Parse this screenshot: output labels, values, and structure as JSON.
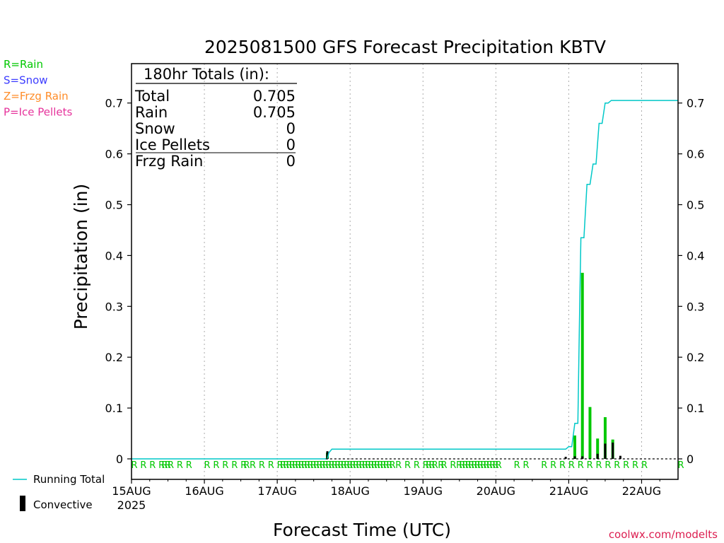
{
  "chart_data": {
    "type": "bar",
    "title": "2025081500 GFS Forecast Precipitation KBTV",
    "xlabel": "Forecast Time (UTC)",
    "ylabel": "Precipitation (in)",
    "ylim": [
      0,
      0.78
    ],
    "yticks": [
      "0",
      "0.1",
      "0.2",
      "0.3",
      "0.4",
      "0.5",
      "0.6",
      "0.7"
    ],
    "y_tick_values": [
      0,
      0.1,
      0.2,
      0.3,
      0.4,
      0.5,
      0.6,
      0.7
    ],
    "x_range_hours": [
      0,
      180
    ],
    "x_ticks": [
      {
        "hour": 0,
        "label": "15AUG",
        "sublabel": "2025"
      },
      {
        "hour": 24,
        "label": "16AUG",
        "sublabel": ""
      },
      {
        "hour": 48,
        "label": "17AUG",
        "sublabel": ""
      },
      {
        "hour": 72,
        "label": "18AUG",
        "sublabel": ""
      },
      {
        "hour": 96,
        "label": "19AUG",
        "sublabel": ""
      },
      {
        "hour": 120,
        "label": "20AUG",
        "sublabel": ""
      },
      {
        "hour": 144,
        "label": "21AUG",
        "sublabel": ""
      },
      {
        "hour": 168,
        "label": "22AUG",
        "sublabel": ""
      }
    ],
    "grid": "vertical-dotted",
    "series": [
      {
        "name": "Running Total",
        "color": "#00c8c8",
        "x": [
          0,
          64.5,
          65,
          66,
          72,
          96,
          120,
          143,
          144,
          145,
          146,
          147,
          147.6,
          148,
          149,
          150,
          151,
          152,
          153,
          154,
          155,
          156,
          157,
          158,
          159,
          160,
          161,
          162,
          163,
          164,
          165,
          166,
          180
        ],
        "y": [
          0,
          0,
          0.012,
          0.019,
          0.019,
          0.019,
          0.019,
          0.019,
          0.024,
          0.024,
          0.07,
          0.07,
          0.3,
          0.435,
          0.435,
          0.54,
          0.54,
          0.58,
          0.58,
          0.66,
          0.66,
          0.7,
          0.7,
          0.705,
          0.705,
          0.705,
          0.705,
          0.705,
          0.705,
          0.705,
          0.705,
          0.705,
          0.705
        ]
      },
      {
        "name": "Rain",
        "color": "#00c800",
        "x": [
          64.5,
          146,
          148.5,
          151,
          153.5,
          156,
          158.5
        ],
        "y": [
          0.012,
          0.046,
          0.366,
          0.102,
          0.04,
          0.082,
          0.038
        ]
      },
      {
        "name": "Convective",
        "color": "#000000",
        "x": [
          64.5,
          143,
          146,
          148.5,
          153.5,
          156,
          158.5,
          161
        ],
        "y": [
          0.015,
          0.004,
          0.005,
          0.005,
          0.01,
          0.03,
          0.032,
          0.006
        ]
      }
    ],
    "ptype_marks": {
      "symbol": "R",
      "color": "#00c800",
      "hours": [
        0,
        3,
        6,
        9,
        10,
        11,
        12,
        15,
        18,
        24,
        27,
        30,
        33,
        36,
        37,
        39,
        42,
        45,
        48,
        49,
        50,
        51,
        52,
        53,
        54,
        55,
        56,
        57,
        58,
        59,
        60,
        61,
        62,
        63,
        64,
        65,
        66,
        67,
        68,
        69,
        70,
        71,
        72,
        73,
        74,
        75,
        76,
        77,
        78,
        79,
        80,
        81,
        82,
        83,
        84,
        85,
        87,
        90,
        93,
        96,
        97,
        98,
        99,
        101,
        102,
        105,
        107,
        108,
        109,
        110,
        111,
        112,
        113,
        114,
        115,
        116,
        117,
        118,
        119,
        120,
        126,
        129,
        135,
        138,
        141,
        144,
        147,
        150,
        153,
        156,
        159,
        162,
        165,
        168,
        180
      ]
    },
    "legend_top": [
      {
        "text": "R=Rain",
        "color": "#00c800"
      },
      {
        "text": "S=Snow",
        "color": "#3c3cff"
      },
      {
        "text": "Z=Frzg Rain",
        "color": "#ff8c28"
      },
      {
        "text": "P=Ice Pellets",
        "color": "#e6329b"
      }
    ],
    "legend_bottom": [
      {
        "text": "Running Total",
        "color": "#00c8c8"
      },
      {
        "text": "Convective",
        "color": "#000000"
      }
    ],
    "totals": {
      "header": "180hr Totals (in):",
      "rows": [
        {
          "label": "Total",
          "value": "0.705"
        },
        {
          "label": "Rain",
          "value": "0.705"
        },
        {
          "label": "Snow",
          "value": "0"
        },
        {
          "label": "Ice Pellets",
          "value": "0"
        },
        {
          "label": "Frzg Rain",
          "value": "0"
        }
      ]
    },
    "credit": "coolwx.com/modelts",
    "credit_color": "#dc1e50"
  }
}
